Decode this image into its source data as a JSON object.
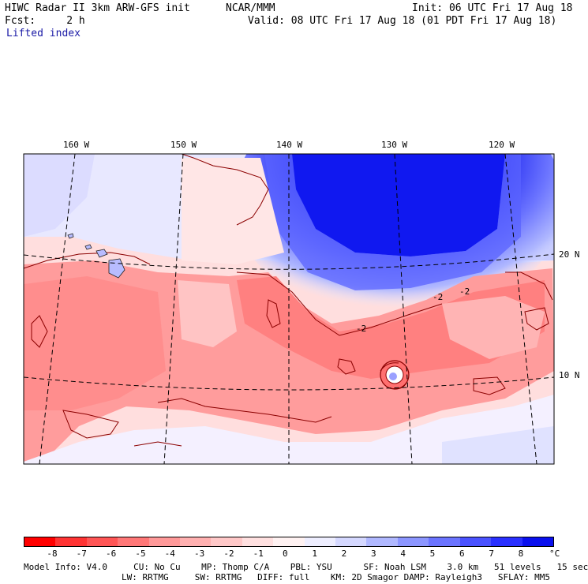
{
  "header": {
    "title_left": "HIWC Radar II 3km ARW-GFS init",
    "org": "NCAR/MMM",
    "init": "Init: 06 UTC Fri 17 Aug 18",
    "fcst": "Fcst:     2 h",
    "valid": "Valid: 08 UTC Fri 17 Aug 18 (01 PDT Fri 17 Aug 18)",
    "field": "Lifted index"
  },
  "map": {
    "lon_labels": [
      "160 W",
      "150 W",
      "140 W",
      "130 W",
      "120 W"
    ],
    "lat_labels": [
      "20 N",
      "10 N"
    ],
    "contour_labels": [
      "-2",
      "-2",
      "-2"
    ]
  },
  "colorbar": {
    "ticks": [
      "-8",
      "-7",
      "-6",
      "-5",
      "-4",
      "-3",
      "-2",
      "-1",
      "0",
      "1",
      "2",
      "3",
      "4",
      "5",
      "6",
      "7",
      "8"
    ],
    "unit": "°C",
    "colors": [
      "#ff0000",
      "#ff3333",
      "#ff5555",
      "#ff7777",
      "#ff9999",
      "#ffb0b0",
      "#ffc8c8",
      "#ffe0e0",
      "#fff2f2",
      "#eeeeff",
      "#d5d8ff",
      "#b0b8ff",
      "#8c96ff",
      "#6b74ff",
      "#4a52ff",
      "#2a30ff",
      "#0a10ee"
    ]
  },
  "footer": {
    "line1": "Model Info: V4.0     CU: No Cu    MP: Thomp C/A    PBL: YSU      SF: Noah LSM    3.0 km   51 levels   15 sec",
    "line2": "LW: RRTMG     SW: RRTMG   DIFF: full    KM: 2D Smagor DAMP: Rayleigh3   SFLAY: MM5"
  }
}
